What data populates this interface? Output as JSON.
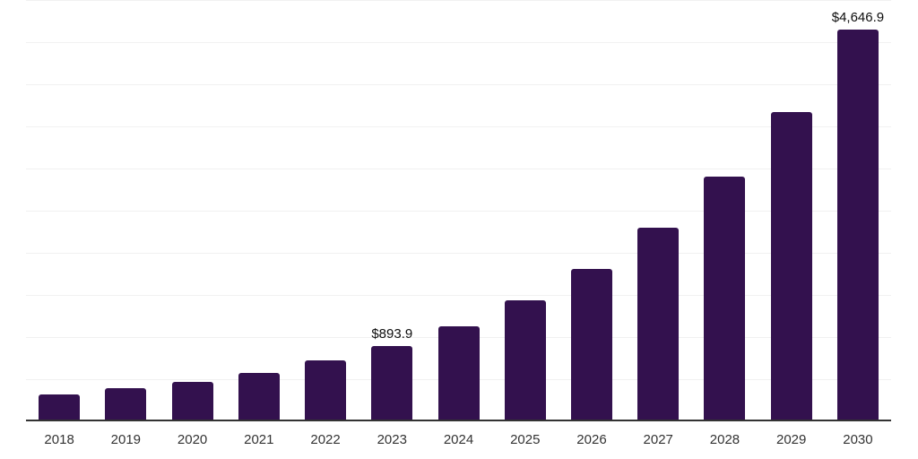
{
  "chart_data": {
    "type": "bar",
    "title": "",
    "xlabel": "",
    "ylabel": "",
    "categories": [
      "2018",
      "2019",
      "2020",
      "2021",
      "2022",
      "2023",
      "2024",
      "2025",
      "2026",
      "2027",
      "2028",
      "2029",
      "2030"
    ],
    "values": [
      319,
      390,
      471,
      578,
      720,
      893.9,
      1131,
      1432,
      1812,
      2294,
      2903,
      3675,
      4646.9
    ],
    "data_labels": {
      "2023": "$893.9",
      "2030": "$4,646.9"
    },
    "ylim": [
      0,
      5000
    ],
    "grid_step": 500,
    "grid": "horizontal",
    "legend": "none",
    "y_axis_ticks_visible": false,
    "colors": {
      "bar": "#33114E",
      "gridline": "#F1F1F1",
      "axis_line": "#333333",
      "tick_label": "#333333",
      "data_label": "#0D0D0D",
      "background": "#FFFFFF"
    }
  }
}
